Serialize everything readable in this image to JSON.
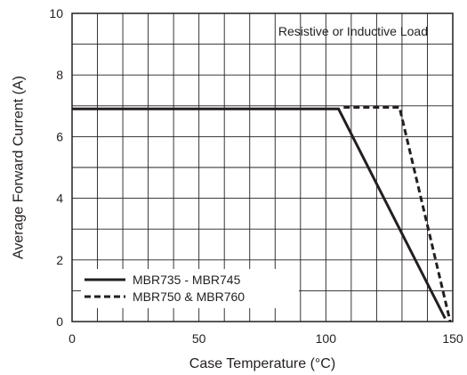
{
  "chart_data": {
    "type": "line",
    "title": "",
    "xlabel": "Case Temperature (°C)",
    "ylabel": "Average Forward Current (A)",
    "xlim": [
      0,
      150
    ],
    "ylim": [
      0,
      10
    ],
    "x_ticks": [
      0,
      50,
      100,
      150
    ],
    "y_ticks": [
      0,
      2,
      4,
      6,
      8,
      10
    ],
    "x_tick_labels": [
      "0",
      "50",
      "100",
      "150"
    ],
    "y_tick_labels": [
      "0",
      "2",
      "4",
      "6",
      "8",
      "10"
    ],
    "grid": true,
    "annotation": "Resistive or Inductive Load",
    "legend_position": "bottom-left",
    "series": [
      {
        "name": "MBR735 - MBR745",
        "style": "solid",
        "color": "#231f20",
        "points": [
          [
            0,
            6.9
          ],
          [
            105,
            6.9
          ],
          [
            147,
            0.1
          ]
        ]
      },
      {
        "name": "MBR750 & MBR760",
        "style": "dashed",
        "color": "#231f20",
        "points": [
          [
            107,
            6.95
          ],
          [
            129,
            6.95
          ],
          [
            149,
            0
          ]
        ]
      }
    ]
  }
}
